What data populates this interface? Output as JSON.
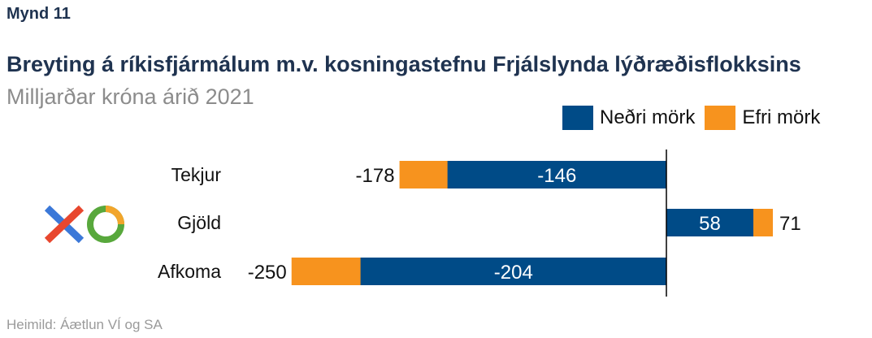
{
  "figure_label": "Mynd 11",
  "title": "Breyting á ríkisfjármálum m.v. kosningastefnu Frjálslynda lýðræðisflokksins",
  "subtitle": "Milljarðar króna árið 2021",
  "source": "Heimild: Áætlun VÍ og SA",
  "logo": {
    "name": "XO party logo",
    "colors": [
      "#3b78d8",
      "#e8472e",
      "#58a83c",
      "#f2a52b"
    ]
  },
  "chart_data": {
    "type": "bar",
    "orientation": "horizontal",
    "categories": [
      "Tekjur",
      "Gjöld",
      "Afkoma"
    ],
    "series": [
      {
        "name": "Neðri mörk",
        "values": [
          -146,
          58,
          -204
        ],
        "color": "#004b87"
      },
      {
        "name": "Efri mörk",
        "values": [
          -178,
          71,
          -250
        ],
        "color": "#f7931e"
      }
    ],
    "data_labels": {
      "inner": [
        "-146",
        "58",
        "-204"
      ],
      "outer": [
        "-178",
        "71",
        "-250"
      ]
    },
    "xlim": [
      -270,
      110
    ],
    "grid": false,
    "legend_position": "top-right"
  }
}
